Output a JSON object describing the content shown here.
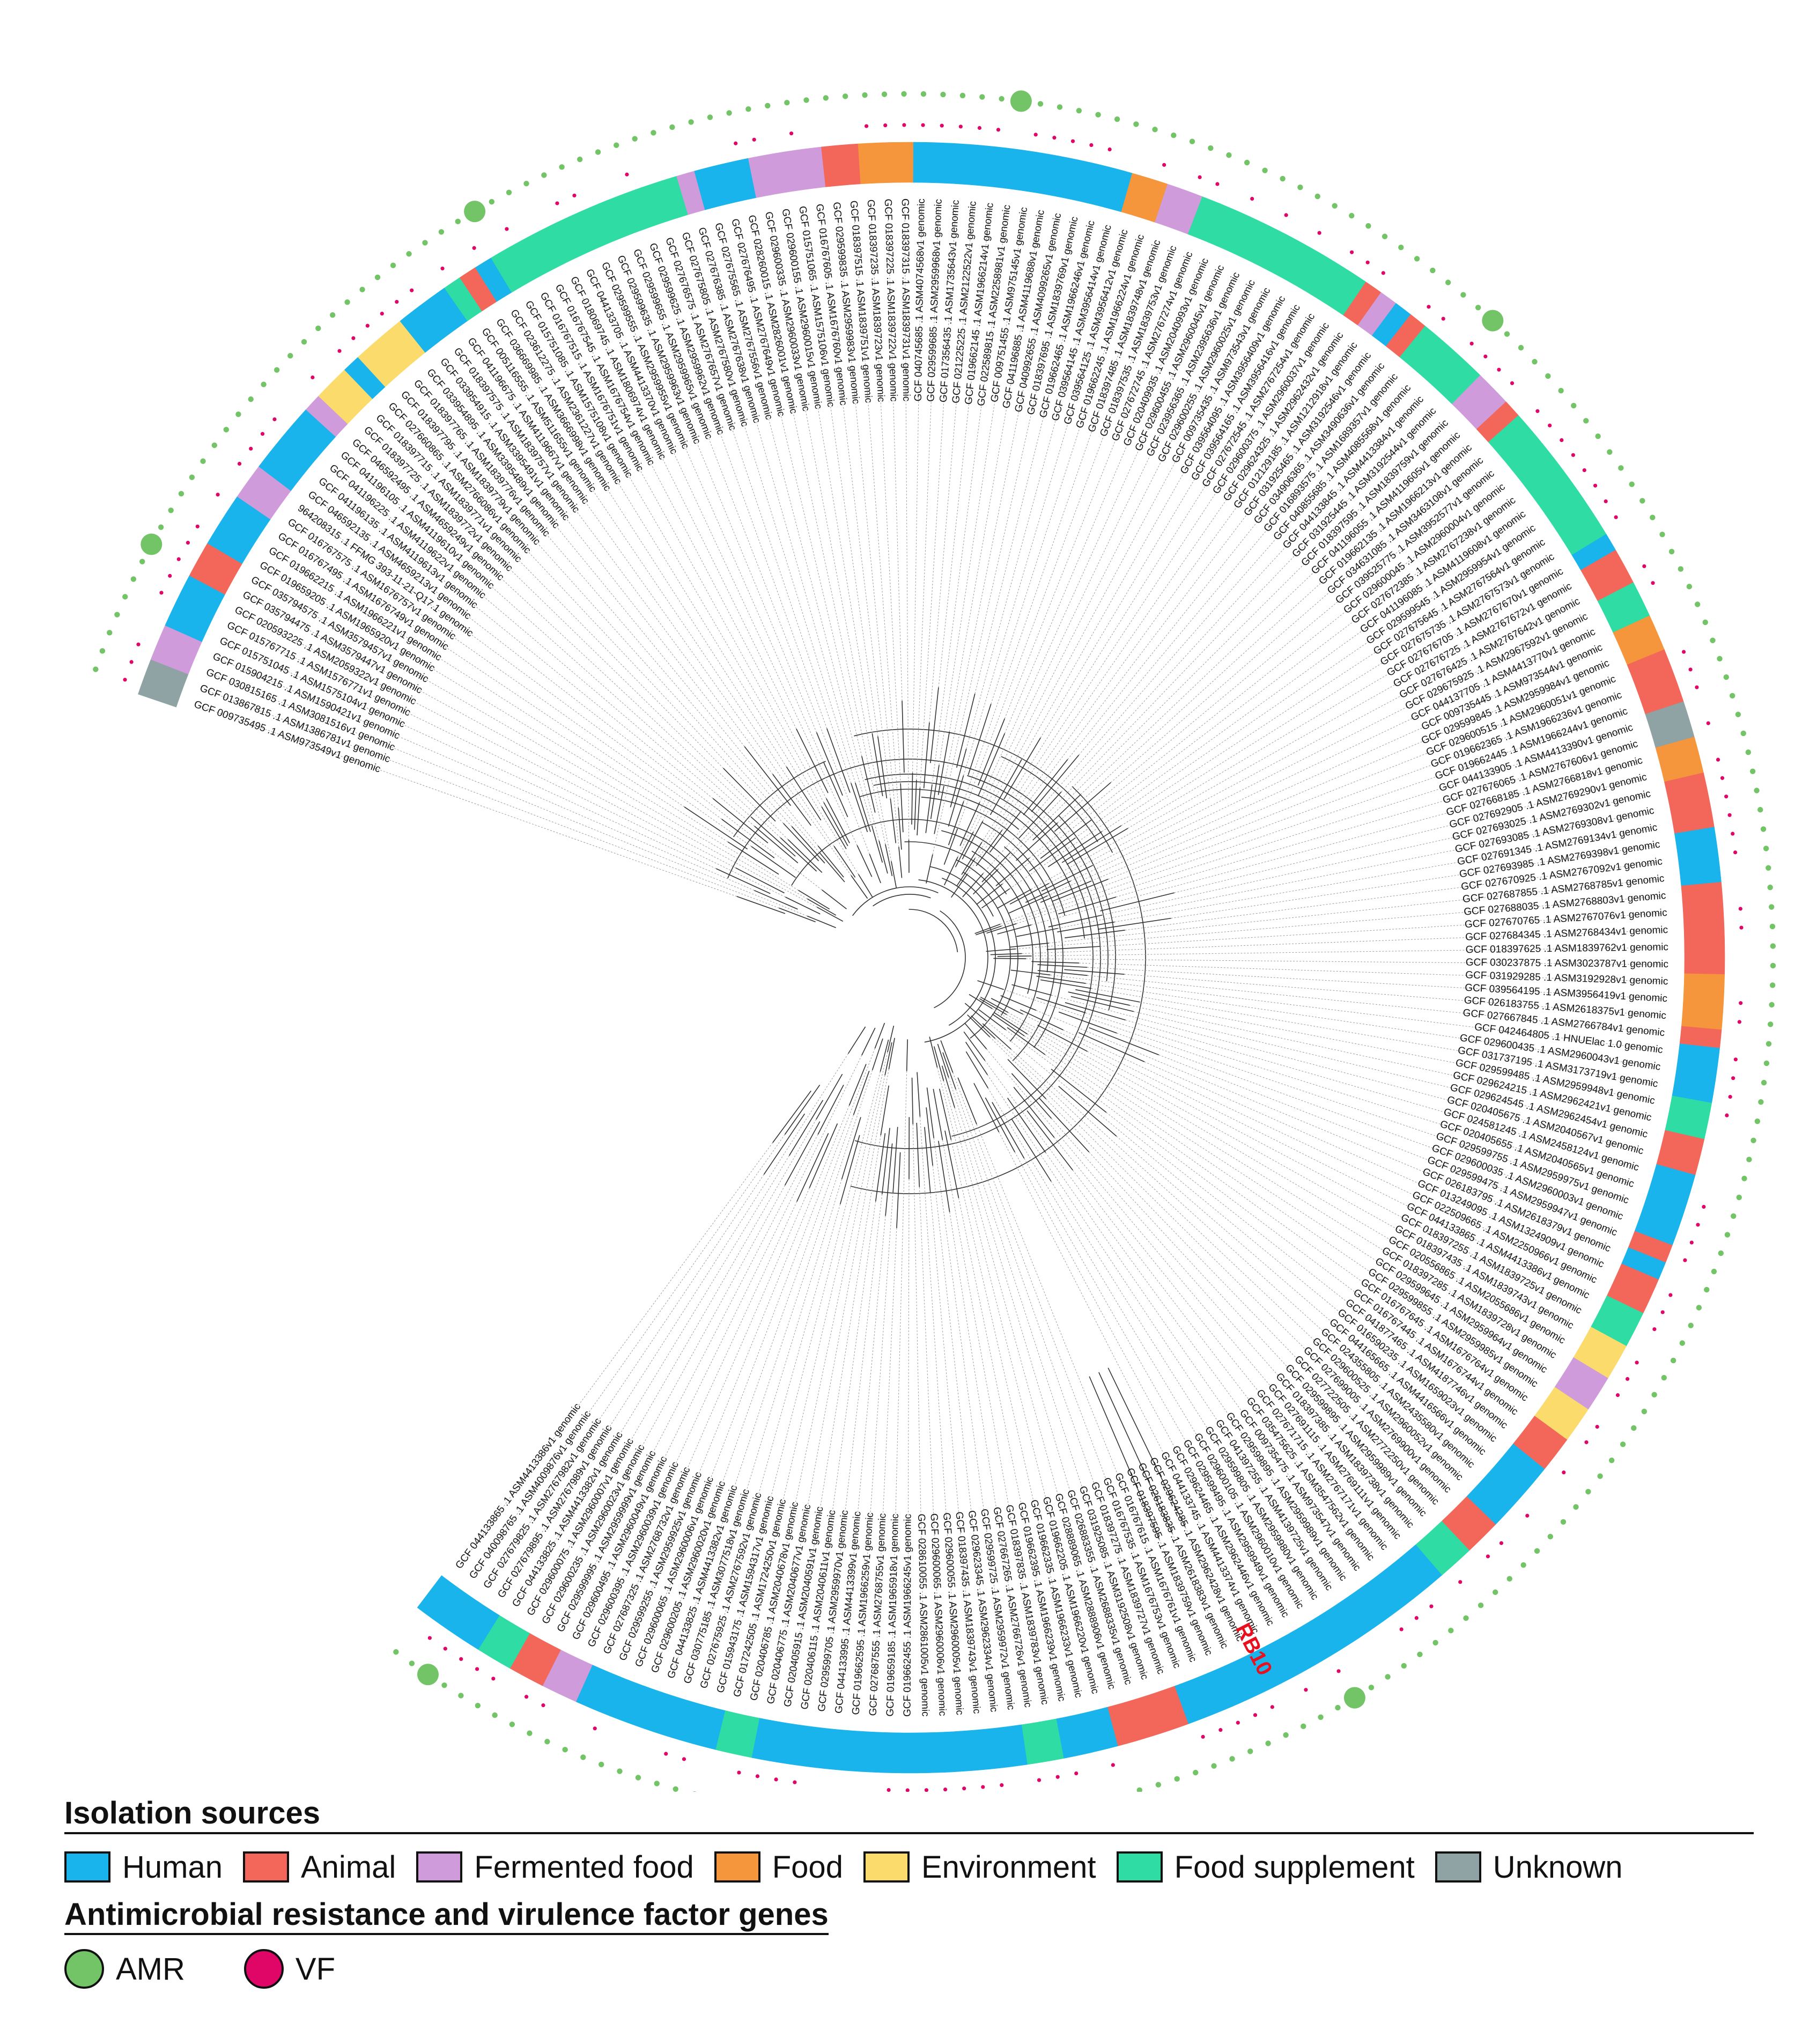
{
  "chart_data": {
    "type": "circular-phylogenetic-tree",
    "highlight": {
      "label": "RB10"
    },
    "tips": [
      "GCF 009735495 .1 ASM973549v1 genomic",
      "GCF 013867815 .1 ASM1386781v1 genomic",
      "GCF 030815165 .1 ASM3081516v1 genomic",
      "GCF 015904215 .1 ASM1590421v1 genomic",
      "GCF 015751045 .1 ASM1575104v1 genomic",
      "GCF 015767715 .1 ASM1576771v1 genomic",
      "GCF 020593225 .1 ASM2059322v1 genomic",
      "GCF 035794475 .1 ASM3579447v1 genomic",
      "GCF 035794575 .1 ASM3579457v1 genomic",
      "GCF 019659205 .1 ASM1965920v1 genomic",
      "GCF 019662215 .1 ASM1966221v1 genomic",
      "GCF 016767495 .1 ASM1676749v1 genomic",
      "GCF 016767575 .1 ASM1676757v1 genomic",
      "964208315 .1 FFMG 393-11-21-Q17.1 genomic",
      "GCF 046592135 .1 ASM4659213v1 genomic",
      "GCF 041196135 .1 ASM4119613v1 genomic",
      "GCF 041196225 .1 ASM4119622v1 genomic",
      "GCF 041196105 .1 ASM4119610v1 genomic",
      "GCF 046592495 .1 ASM4659249v1 genomic",
      "GCF 018397725 .1 ASM1839772v1 genomic",
      "GCF 018397715 .1 ASM1839771v1 genomic",
      "GCF 027660865 .1 ASM2766086v1 genomic",
      "GCF 018397795 .1 ASM1839779v1 genomic",
      "GCF 018397765 .1 ASM1839776v1 genomic",
      "GCF 033954895 .1 ASM3395489v1 genomic",
      "GCF 033954915 .1 ASM3395491v1 genomic",
      "GCF 018397575 .1 ASM1839757v1 genomic",
      "GCF 041196675 .1 ASM4119667v1 genomic",
      "GCF 005116555 .1 ASM511655v1 genomic",
      "GCF 036669985 .1 ASM3666998v1 genomic",
      "GCF 023612275 .1 ASM2361227v1 genomic",
      "GCF 015751085 .1 ASM1575108v1 genomic",
      "GCF 016767515 .1 ASM1676751v1 genomic",
      "GCF 016767545 .1 ASM1676754v1 genomic",
      "GCF 018069745 .1 ASM1806974v1 genomic",
      "GCF 044133705 .1 ASM4413370v1 genomic",
      "GCF 029599555 .1 ASM2959955v1 genomic",
      "GCF 029599635 .1 ASM2959963v1 genomic",
      "GCF 029599655 .1 ASM2959965v1 genomic",
      "GCF 029599625 .1 ASM2959962v1 genomic",
      "GCF 027676575 .1 ASM2767657v1 genomic",
      "GCF 027675805 .1 ASM2767580v1 genomic",
      "GCF 027676385 .1 ASM2767638v1 genomic",
      "GCF 027675565 .1 ASM2767556v1 genomic",
      "GCF 027676495 .1 ASM2767649v1 genomic",
      "GCF 028260015 .1 ASM2826001v1 genomic",
      "GCF 029600335 .1 ASM2960033v1 genomic",
      "GCF 029600155 .1 ASM2960015v1 genomic",
      "GCF 015751065 .1 ASM1575106v1 genomic",
      "GCF 016767605 .1 ASM1676760v1 genomic",
      "GCF 029599835 .1 ASM2959983v1 genomic",
      "GCF 018397515 .1 ASM1839751v1 genomic",
      "GCF 018397235 .1 ASM1839723v1 genomic",
      "GCF 018397225 .1 ASM1839722v1 genomic",
      "GCF 018397315 .1 ASM1839731v1 genomic",
      "GCF 040745685 .1 ASM4074568v1 genomic",
      "GCF 029599685 .1 ASM2959968v1 genomic",
      "GCF 017356435 .1 ASM1735643v1 genomic",
      "GCF 021225225 .1 ASM2122522v1 genomic",
      "GCF 019662145 .1 ASM1966214v1 genomic",
      "GCF 022589815 .1 ASM2258981v1 genomic",
      "GCF 009751455 .1 ASM975145v1 genomic",
      "GCF 041196885 .1 ASM4119688v1 genomic",
      "GCF 040992655 .1 ASM4099265v1 genomic",
      "GCF 018397695 .1 ASM1839769v1 genomic",
      "GCF 019662465 .1 ASM1966246v1 genomic",
      "GCF 039564145 .1 ASM3956414v1 genomic",
      "GCF 039564125 .1 ASM3956412v1 genomic",
      "GCF 019662245 .1 ASM1966224v1 genomic",
      "GCF 018397485 .1 ASM1839748v1 genomic",
      "GCF 018397535 .1 ASM1839753v1 genomic",
      "GCF 027672745 .1 ASM2767274v1 genomic",
      "GCF 020409935 .1 ASM2040993v1 genomic",
      "GCF 029600455 .1 ASM2960045v1 genomic",
      "GCF 023956365 .1 ASM2395636v1 genomic",
      "GCF 029600255 .1 ASM2960025v1 genomic",
      "GCF 009735435 .1 ASM973543v1 genomic",
      "GCF 039564095 .1 ASM3956409v1 genomic",
      "GCF 039564165 .1 ASM3956416v1 genomic",
      "GCF 027672545 .1 ASM2767254v1 genomic",
      "GCF 029600375 .1 ASM2960037v1 genomic",
      "GCF 029624325 .1 ASM2962432v1 genomic",
      "GCF 012129185 .1 ASM1212918v1 genomic",
      "GCF 031925465 .1 ASM3192546v1 genomic",
      "GCF 034906365 .1 ASM3490636v1 genomic",
      "GCF 016893575 .1 ASM1689357v1 genomic",
      "GCF 040855685 .1 ASM4085568v1 genomic",
      "GCF 044133845 .1 ASM4413384v1 genomic",
      "GCF 031925445 .1 ASM3192544v1 genomic",
      "GCF 018397595 .1 ASM1839759v1 genomic",
      "GCF 041196055 .1 ASM4119605v1 genomic",
      "GCF 019662135 .1 ASM1966213v1 genomic",
      "GCF 034631085 .1 ASM3463108v1 genomic",
      "GCF 039525775 .1 ASM3952577v1 genomic",
      "GCF 029600045 .1 ASM2960004v1 genomic",
      "GCF 027672385 .1 ASM2767238v1 genomic",
      "GCF 041196085 .1 ASM4119608v1 genomic",
      "GCF 029599545 .1 ASM2959954v1 genomic",
      "GCF 027675645 .1 ASM2767564v1 genomic",
      "GCF 027675735 .1 ASM2767573v1 genomic",
      "GCF 027676705 .1 ASM2767670v1 genomic",
      "GCF 027676725 .1 ASM2767672v1 genomic",
      "GCF 027676425 .1 ASM2767642v1 genomic",
      "GCF 029675925 .1 ASM2967592v1 genomic",
      "GCF 044137705 .1 ASM4413770v1 genomic",
      "GCF 009735445 .1 ASM973544v1 genomic",
      "GCF 029599845 .1 ASM2959984v1 genomic",
      "GCF 029600515 .1 ASM2960051v1 genomic",
      "GCF 019662365 .1 ASM1966236v1 genomic",
      "GCF 019662445 .1 ASM1966244v1 genomic",
      "GCF 044133905 .1 ASM4413390v1 genomic",
      "GCF 027676065 .1 ASM2767606v1 genomic",
      "GCF 027668185 .1 ASM2766818v1 genomic",
      "GCF 027692905 .1 ASM2769290v1 genomic",
      "GCF 027693025 .1 ASM2769302v1 genomic",
      "GCF 027693085 .1 ASM2769308v1 genomic",
      "GCF 027691345 .1 ASM2769134v1 genomic",
      "GCF 027693985 .1 ASM2769398v1 genomic",
      "GCF 027670925 .1 ASM2767092v1 genomic",
      "GCF 027687855 .1 ASM2768785v1 genomic",
      "GCF 027688035 .1 ASM2768803v1 genomic",
      "GCF 027670765 .1 ASM2767076v1 genomic",
      "GCF 027684345 .1 ASM2768434v1 genomic",
      "GCF 018397625 .1 ASM1839762v1 genomic",
      "GCF 030237875 .1 ASM3023787v1 genomic",
      "GCF 031929285 .1 ASM3192928v1 genomic",
      "GCF 039564195 .1 ASM3956419v1 genomic",
      "GCF 026183755 .1 ASM2618375v1 genomic",
      "GCF 027667845 .1 ASM2766784v1 genomic",
      "GCF 042464805 .1 HNUElac 1.0 genomic",
      "GCF 029600435 .1 ASM2960043v1 genomic",
      "GCF 031737195 .1 ASM3173719v1 genomic",
      "GCF 029599485 .1 ASM2959948v1 genomic",
      "GCF 029624215 .1 ASM2962421v1 genomic",
      "GCF 029624545 .1 ASM2962454v1 genomic",
      "GCF 020405675 .1 ASM2040567v1 genomic",
      "GCF 024581245 .1 ASM2458124v1 genomic",
      "GCF 020405655 .1 ASM2040565v1 genomic",
      "GCF 029599755 .1 ASM2959975v1 genomic",
      "GCF 029600035 .1 ASM2960003v1 genomic",
      "GCF 029599475 .1 ASM2959947v1 genomic",
      "GCF 026183795 .1 ASM2618379v1 genomic",
      "GCF 013249095 .1 ASM1324909v1 genomic",
      "GCF 022509665 .1 ASM2250966v1 genomic",
      "GCF 044133865 .1 ASM4413386v1 genomic",
      "GCF 018397255 .1 ASM1839725v1 genomic",
      "GCF 018397435 .1 ASM1839743v1 genomic",
      "GCF 020556865 .1 ASM2055686v1 genomic",
      "GCF 018397285 .1 ASM1839728v1 genomic",
      "GCF 029599645 .1 ASM2959964v1 genomic",
      "GCF 029599855 .1 ASM2959985v1 genomic",
      "GCF 016767645 .1 ASM1676764v1 genomic",
      "GCF 016767445 .1 ASM1676744v1 genomic",
      "GCF 041877465 .1 ASM4187746v1 genomic",
      "GCF 016590235 .1 ASM1659023v1 genomic",
      "GCF 044165665 .1 ASM4416566v1 genomic",
      "GCF 024355805 .1 ASM2435580v1 genomic",
      "GCF 029600525 .1 ASM2960052v1 genomic",
      "GCF 027699005 .1 ASM2769900v1 genomic",
      "GCF 027722505 .1 ASM2772250v1 genomic",
      "GCF 029599895 .1 ASM2959989v1 genomic",
      "GCF 018397385 .1 ASM1839738v1 genomic",
      "GCF 027691115 .1 ASM2769111v1 genomic",
      "GCF 027671715 .1 ASM2767171v1 genomic",
      "GCF 035475625 .1 ASM3547562v1 genomic",
      "GCF 009735475 .1 ASM973547v1 genomic",
      "GCF 029599895 .1 ASM2959989v1 genomic",
      "GCF 041397255 .1 ASM4139725v1 genomic",
      "GCF 029599805 .1 ASM2959980v1 genomic",
      "GCF 029600105 .1 ASM2960010v1 genomic",
      "GCF 029599495 .1 ASM2959949v1 genomic",
      "GCF 029624465 .1 ASM2962446v1 genomic",
      "GCF 044133745 .1 ASM4413374v1 genomic",
      "GCF 029624285 .1 ASM2962428v1 genomic",
      "GCF 026183835 .1 ASM2618383v1 genomic",
      "GCF 018397595 .1 ASM1839759v1 genomic",
      "GCF 016767615 .1 ASM1676761v1 genomic",
      "GCF 016767535 .1 ASM1676753v1 genomic",
      "GCF 018397275 .1 ASM1839727v1 genomic",
      "GCF 031925085 .1 ASM3192508v1 genomic",
      "GCF 026883355 .1 ASM2688335v1 genomic",
      "GCF 028889065 .1 ASM2888906v1 genomic",
      "GCF 019662205 .1 ASM1966220v1 genomic",
      "GCF 019662335 .1 ASM1966233v1 genomic",
      "GCF 019662395 .1 ASM1966239v1 genomic",
      "GCF 018397835 .1 ASM1839783v1 genomic",
      "GCF 027667265 .1 ASM2766726v1 genomic",
      "GCF 029599725 .1 ASM2959972v1 genomic",
      "GCF 029623345 .1 ASM2962334v1 genomic",
      "GCF 018397435 .1 ASM1839743v1 genomic",
      "GCF 029600055 .1 ASM2960005v1 genomic",
      "GCF 029600065 .1 ASM2960006v1 genomic",
      "GCF 028610055 .1 ASM2861005v1 genomic",
      "GCF 019662455 .1 ASM1966245v1 genomic",
      "GCF 019659185 .1 ASM1965918v1 genomic",
      "GCF 027687555 .1 ASM2768755v1 genomic",
      "GCF 019662595 .1 ASM1966259v1 genomic",
      "GCF 044133995 .1 ASM4413399v1 genomic",
      "GCF 029599705 .1 ASM2959970v1 genomic",
      "GCF 020406115 .1 ASM2040611v1 genomic",
      "GCF 020405915 .1 ASM2040591v1 genomic",
      "GCF 020406775 .1 ASM2040677v1 genomic",
      "GCF 020406785 .1 ASM2040678v1 genomic",
      "GCF 017242505 .1 ASM1724250v1 genomic",
      "GCF 015943175 .1 ASM1594317v1 genomic",
      "GCF 027675925 .1 ASM2767592v1 genomic",
      "GCF 030775185 .1 ASM3077518v1 genomic",
      "GCF 044133825 .1 ASM4413382v1 genomic",
      "GCF 029600205 .1 ASM2960020v1 genomic",
      "GCF 029600065 .1 ASM2960006v1 genomic",
      "GCF 029599255 .1 ASM2959925v1 genomic",
      "GCF 027687325 .1 ASM2768732v1 genomic",
      "GCF 029600395 .1 ASM2960039v1 genomic",
      "GCF 029600495 .1 ASM2960049v1 genomic",
      "GCF 029599995 .1 ASM2959999v1 genomic",
      "GCF 029600235 .1 ASM2960023v1 genomic",
      "GCF 029600075 .1 ASM2960007v1 genomic",
      "GCF 044133825 .1 ASM4413382v1 genomic",
      "GCF 027679895 .1 ASM2767989v1 genomic",
      "GCF 027679825 .1 ASM2767982v1 genomic",
      "GCF 040098765 .1 ASM4009876v1 genomic",
      "GCF 044133865 .1 ASM4413386v1 genomic"
    ],
    "sources": "UUPPHHARRAAHPPAAAHPYYAYYYHHHSRASSSSSSSSSSSPHHHPPPPRRFFFHHHHHHHHHHHHFFPPSSSSSSSSSSRPHRSSSSPPRSSSSSSSSHRRSSFFRRRUUFFRRRHHHRRRRRFFFRHHHSSRRHHHHRHRRSSYYPPYYRRHHHHRRSSHHHHHHHHHHHHHHHHRRRRHHHSSHHHHHHHHHHHHHHHSSHHHHHHHHPPRRSSHHHHRRFFRRUUFFPPRRHHHHHSSHHSSPYYYYYPPHHFFPPHHSSPPHHHHPPPPSSSSHHHHRRHHPPYYPPHHHHRRHHSSFFRRHHHHSSPPPPHHHHSSSSPPPPHHHHHHPPPPFFPPHHHHHHPPPPFFYYPPPPHHHHHH",
    "series": [
      {
        "name": "AMR"
      },
      {
        "name": "VF"
      }
    ]
  },
  "legend": {
    "sources_title": "Isolation sources",
    "sources": [
      {
        "label": "Human",
        "color": "#1ab4ec"
      },
      {
        "label": "Animal",
        "color": "#f2675a"
      },
      {
        "label": "Fermented food",
        "color": "#cf9bda"
      },
      {
        "label": "Food",
        "color": "#f5963c"
      },
      {
        "label": "Environment",
        "color": "#fbdb6c"
      },
      {
        "label": "Food supplement",
        "color": "#2fdca4"
      },
      {
        "label": "Unknown",
        "color": "#8fa2a4"
      }
    ],
    "genes_title": "Antimicrobial resistance and virulence factor genes",
    "genes": [
      {
        "label": "AMR",
        "color": "#73c467"
      },
      {
        "label": "VF",
        "color": "#e00668"
      }
    ]
  }
}
